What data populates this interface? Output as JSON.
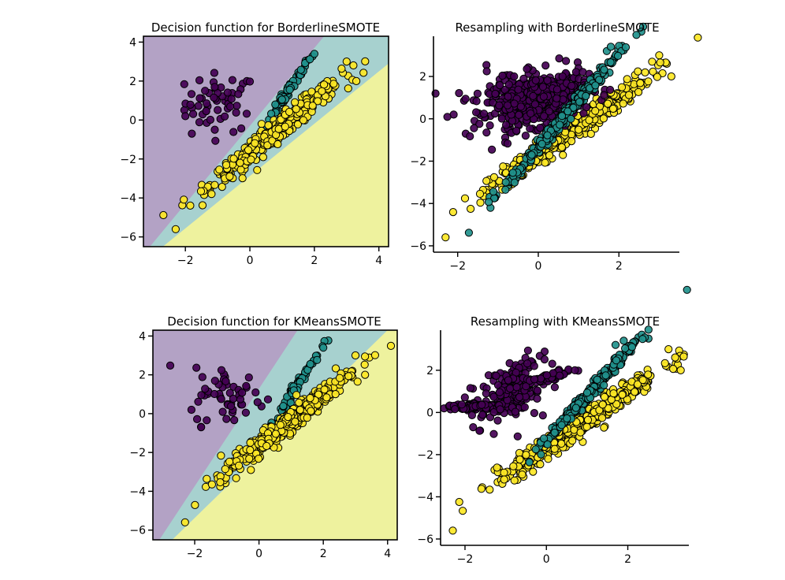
{
  "colors": {
    "class_0": "#440154",
    "class_1": "#21918c",
    "class_2": "#fde725",
    "region_0": "#b3a2c5",
    "region_1": "#a7d1cf",
    "region_2": "#eef29e",
    "marker_edge": "#000000"
  },
  "chart_data": [
    {
      "type": "scatter",
      "title": "Decision function for BorderlineSMOTE",
      "xlim": [
        -3.3,
        4.3
      ],
      "ylim": [
        -6.5,
        4.3
      ],
      "xticks": [
        -2,
        0,
        2,
        4
      ],
      "yticks": [
        4,
        2,
        0,
        -2,
        -4,
        -6
      ],
      "xtick_labels": [
        "−2",
        "0",
        "2",
        "4"
      ],
      "ytick_labels": [
        "4",
        "2",
        "0",
        "−2",
        "−4",
        "−6"
      ],
      "frame": "box",
      "decision_regions": {
        "boundary_0_1": [
          [
            -3.1,
            -6.5
          ],
          [
            2.3,
            4.3
          ]
        ],
        "boundary_1_2": [
          [
            -2.7,
            -6.5
          ],
          [
            4.3,
            2.9
          ]
        ]
      },
      "clusters": [
        {
          "class": 0,
          "count": 55,
          "center": [
            -0.9,
            0.9
          ],
          "spread": [
            0.55,
            0.75
          ],
          "slope": 0,
          "extra_points": [
            [
              -2.0,
              0.2
            ],
            [
              -1.8,
              -0.7
            ]
          ]
        },
        {
          "class": 1,
          "count": 60,
          "center": [
            1.2,
            1.5
          ],
          "spread": [
            0.35,
            0.15
          ],
          "slope": 2.5,
          "extra_points": [
            [
              2.0,
              3.4
            ]
          ]
        },
        {
          "class": 2,
          "count": 420,
          "center": [
            0.8,
            -0.6
          ],
          "spread": [
            1.0,
            0.3
          ],
          "slope": 1.33,
          "extra_points": [
            [
              -2.3,
              -5.6
            ],
            [
              3.3,
              2.0
            ],
            [
              3.0,
              3.0
            ]
          ]
        }
      ]
    },
    {
      "type": "scatter",
      "title": "Resampling with BorderlineSMOTE",
      "xlim": [
        -2.6,
        3.5
      ],
      "ylim": [
        -6.3,
        3.9
      ],
      "xticks": [
        -2,
        0,
        2
      ],
      "yticks": [
        2,
        0,
        -2,
        -4,
        -6
      ],
      "xtick_labels": [
        "−2",
        "0",
        "2"
      ],
      "ytick_labels": [
        "2",
        "0",
        "−2",
        "−4",
        "−6"
      ],
      "frame": "despine",
      "clusters": [
        {
          "class": 2,
          "count": 420,
          "center": [
            0.8,
            -0.6
          ],
          "spread": [
            1.0,
            0.3
          ],
          "slope": 1.33,
          "extra_points": [
            [
              -2.3,
              -5.6
            ],
            [
              3.3,
              2.0
            ],
            [
              3.0,
              3.0
            ]
          ]
        },
        {
          "class": 0,
          "count": 55,
          "center": [
            -0.9,
            0.9
          ],
          "spread": [
            0.55,
            0.75
          ],
          "slope": 0,
          "extra_points": [
            [
              -2.1,
              0.2
            ],
            [
              -1.8,
              -0.7
            ]
          ]
        },
        {
          "class": 0,
          "count": 450,
          "center": [
            0.0,
            0.9
          ],
          "spread": [
            0.6,
            0.6
          ],
          "slope": 0.4,
          "extra_points": [
            [
              0.6,
              2.0
            ],
            [
              -0.6,
              2.0
            ]
          ]
        },
        {
          "class": 1,
          "count": 300,
          "center": [
            0.6,
            0.0
          ],
          "spread": [
            0.7,
            0.18
          ],
          "slope": 2.2,
          "extra_points": [
            [
              1.7,
              3.2
            ],
            [
              1.8,
              3.4
            ]
          ]
        }
      ]
    },
    {
      "type": "scatter",
      "title": "Decision function for KMeansSMOTE",
      "xlim": [
        -3.3,
        4.3
      ],
      "ylim": [
        -6.5,
        4.3
      ],
      "xticks": [
        -2,
        0,
        2,
        4
      ],
      "yticks": [
        4,
        2,
        0,
        -2,
        -4,
        -6
      ],
      "xtick_labels": [
        "−2",
        "0",
        "2",
        "4"
      ],
      "ytick_labels": [
        "4",
        "2",
        "0",
        "−2",
        "−4",
        "−6"
      ],
      "frame": "box",
      "decision_regions": {
        "boundary_0_1": [
          [
            -3.1,
            -6.5
          ],
          [
            1.2,
            4.3
          ]
        ],
        "boundary_1_2": [
          [
            -2.7,
            -6.5
          ],
          [
            4.0,
            4.3
          ]
        ]
      },
      "clusters": [
        {
          "class": 0,
          "count": 55,
          "center": [
            -0.9,
            0.9
          ],
          "spread": [
            0.55,
            0.75
          ],
          "slope": 0,
          "extra_points": [
            [
              -2.1,
              0.2
            ],
            [
              -1.8,
              -0.7
            ]
          ]
        },
        {
          "class": 1,
          "count": 70,
          "center": [
            1.2,
            1.5
          ],
          "spread": [
            0.35,
            0.15
          ],
          "slope": 2.5,
          "extra_points": [
            [
              2.0,
              3.4
            ]
          ]
        },
        {
          "class": 2,
          "count": 420,
          "center": [
            0.8,
            -0.6
          ],
          "spread": [
            1.0,
            0.3
          ],
          "slope": 1.33,
          "extra_points": [
            [
              -2.3,
              -5.6
            ],
            [
              3.3,
              2.0
            ],
            [
              3.0,
              3.0
            ]
          ]
        }
      ]
    },
    {
      "type": "scatter",
      "title": "Resampling with KMeansSMOTE",
      "xlim": [
        -2.6,
        3.5
      ],
      "ylim": [
        -6.3,
        3.9
      ],
      "xticks": [
        -2,
        0,
        2
      ],
      "yticks": [
        2,
        0,
        -2,
        -4,
        -6
      ],
      "xtick_labels": [
        "−2",
        "0",
        "2"
      ],
      "ytick_labels": [
        "2",
        "0",
        "−2",
        "−4",
        "−6"
      ],
      "frame": "despine",
      "clusters": [
        {
          "class": 2,
          "count": 450,
          "center": [
            0.8,
            -0.6
          ],
          "spread": [
            1.0,
            0.3
          ],
          "slope": 1.33,
          "extra_points": [
            [
              -2.3,
              -5.6
            ],
            [
              3.3,
              2.0
            ],
            [
              3.0,
              3.0
            ]
          ]
        },
        {
          "class": 0,
          "count": 55,
          "center": [
            -0.9,
            0.9
          ],
          "spread": [
            0.55,
            0.75
          ],
          "slope": 0,
          "extra_points": [
            [
              -2.1,
              0.2
            ],
            [
              -1.8,
              -0.7
            ]
          ]
        },
        {
          "class": 0,
          "count": 160,
          "center": [
            -1.6,
            0.25
          ],
          "spread": [
            0.45,
            0.06
          ],
          "slope": 0,
          "extra_points": []
        },
        {
          "class": 0,
          "count": 170,
          "center": [
            -0.75,
            1.2
          ],
          "spread": [
            0.3,
            0.5
          ],
          "slope": 0.9,
          "extra_points": [
            [
              -0.3,
              2.2
            ]
          ]
        },
        {
          "class": 0,
          "count": 70,
          "center": [
            0.1,
            1.7
          ],
          "spread": [
            0.25,
            0.08
          ],
          "slope": 0.5,
          "extra_points": [
            [
              0.7,
              2.0
            ]
          ]
        },
        {
          "class": 1,
          "count": 320,
          "center": [
            1.1,
            1.0
          ],
          "spread": [
            0.55,
            0.15
          ],
          "slope": 2.1,
          "extra_points": [
            [
              1.9,
              3.4
            ],
            [
              1.7,
              3.2
            ]
          ]
        }
      ]
    }
  ]
}
